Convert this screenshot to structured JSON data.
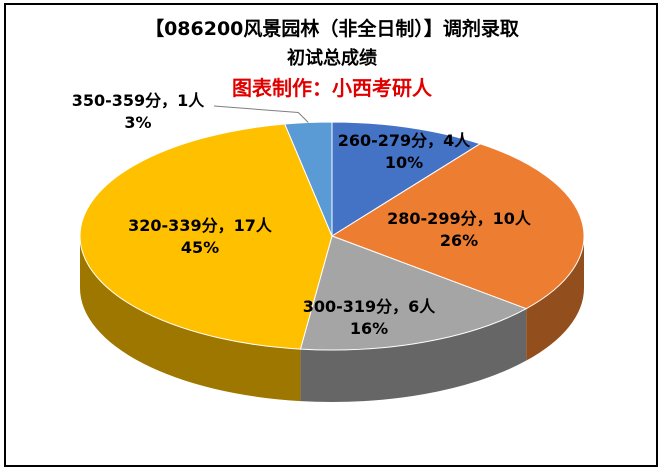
{
  "chart_data": {
    "type": "pie",
    "title": "【086200风景园林（非全日制）】调剂录取",
    "subtitle": "初试总成绩",
    "annotation": "图表制作：小西考研人",
    "categories": [
      "260-279分",
      "280-299分",
      "300-319分",
      "320-339分",
      "350-359分"
    ],
    "counts": [
      4,
      10,
      6,
      17,
      1
    ],
    "values": [
      10,
      26,
      16,
      45,
      3
    ],
    "labels": [
      [
        "260-279分，4人",
        "10%"
      ],
      [
        "280-299分，10人",
        "26%"
      ],
      [
        "300-319分，6人",
        "16%"
      ],
      [
        "320-339分，17人",
        "45%"
      ],
      [
        "350-359分，1人",
        "3%"
      ]
    ],
    "colors": [
      "#4472C4",
      "#ED7D31",
      "#A5A5A5",
      "#FFC000",
      "#5B9BD5"
    ],
    "style": "3d-pie"
  }
}
